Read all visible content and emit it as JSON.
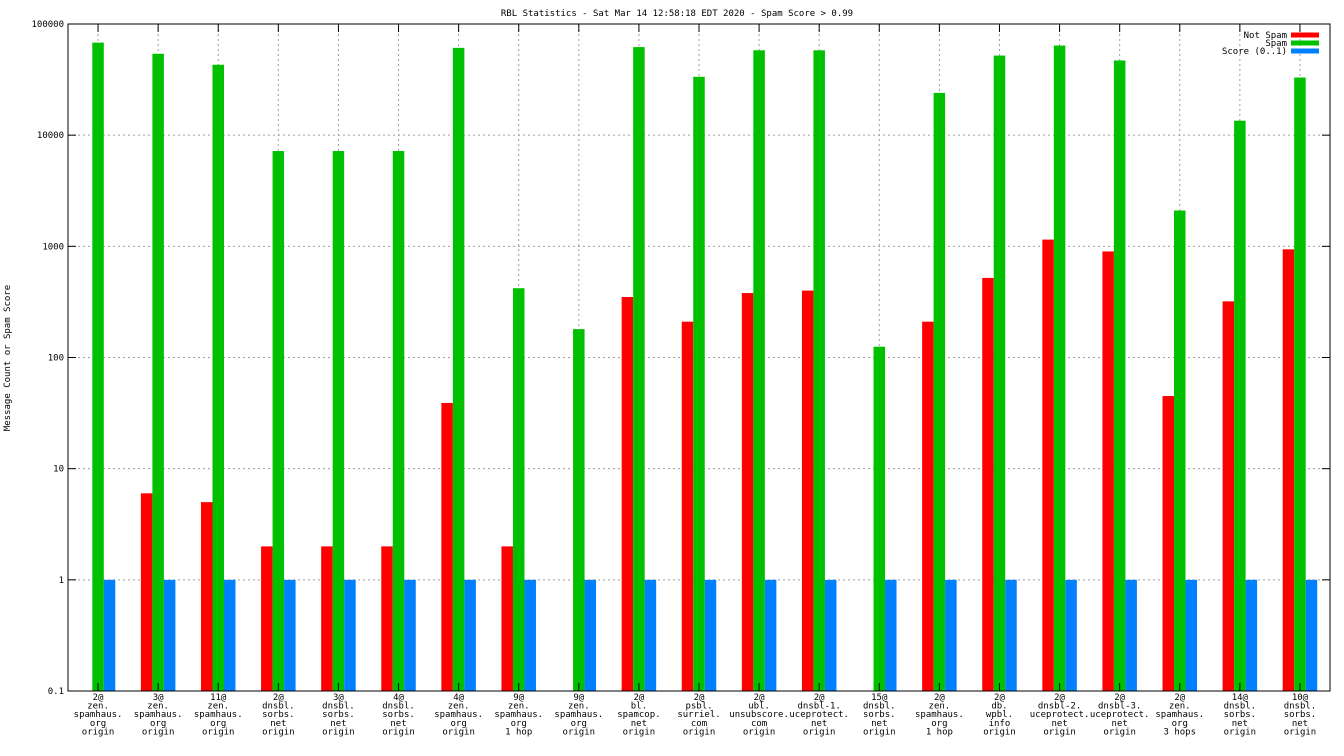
{
  "chart_data": {
    "type": "bar",
    "title": "RBL Statistics - Sat Mar 14 12:58:18 EDT 2020 - Spam Score > 0.99",
    "ylabel": "Message Count or Spam Score",
    "xlabel": "",
    "yscale": "log",
    "ylim": [
      0.1,
      100000
    ],
    "yticks": [
      "0.1",
      "1",
      "10",
      "100",
      "1000",
      "10000",
      "100000"
    ],
    "grid": true,
    "legend_position": "top-right",
    "categories": [
      [
        "2@",
        "zen.",
        "spamhaus.",
        "org",
        "origin"
      ],
      [
        "3@",
        "zen.",
        "spamhaus.",
        "org",
        "origin"
      ],
      [
        "11@",
        "zen.",
        "spamhaus.",
        "org",
        "origin"
      ],
      [
        "2@",
        "dnsbl.",
        "sorbs.",
        "net",
        "origin"
      ],
      [
        "3@",
        "dnsbl.",
        "sorbs.",
        "net",
        "origin"
      ],
      [
        "4@",
        "dnsbl.",
        "sorbs.",
        "net",
        "origin"
      ],
      [
        "4@",
        "zen.",
        "spamhaus.",
        "org",
        "origin"
      ],
      [
        "9@",
        "zen.",
        "spamhaus.",
        "org",
        "1 hop"
      ],
      [
        "9@",
        "zen.",
        "spamhaus.",
        "org",
        "origin"
      ],
      [
        "2@",
        "bl.",
        "spamcop.",
        "net",
        "origin"
      ],
      [
        "2@",
        "psbl.",
        "surriel.",
        "com",
        "origin"
      ],
      [
        "2@",
        "ubl.",
        "unsubscore.",
        "com",
        "origin"
      ],
      [
        "2@",
        "dnsbl-1.",
        "uceprotect.",
        "net",
        "origin"
      ],
      [
        "15@",
        "dnsbl.",
        "sorbs.",
        "net",
        "origin"
      ],
      [
        "2@",
        "zen.",
        "spamhaus.",
        "org",
        "1 hop"
      ],
      [
        "2@",
        "db.",
        "wpbl.",
        "info",
        "origin"
      ],
      [
        "2@",
        "dnsbl-2.",
        "uceprotect.",
        "net",
        "origin"
      ],
      [
        "2@",
        "dnsbl-3.",
        "uceprotect.",
        "net",
        "origin"
      ],
      [
        "2@",
        "zen.",
        "spamhaus.",
        "org",
        "3 hops"
      ],
      [
        "14@",
        "dnsbl.",
        "sorbs.",
        "net",
        "origin"
      ],
      [
        "10@",
        "dnsbl.",
        "sorbs.",
        "net",
        "origin"
      ]
    ],
    "series": [
      {
        "name": "Not Spam",
        "color": "#ff0000",
        "values": [
          null,
          6,
          5,
          2,
          2,
          2,
          39,
          2,
          null,
          350,
          210,
          380,
          400,
          null,
          210,
          520,
          1150,
          900,
          45,
          320,
          940
        ]
      },
      {
        "name": "Spam",
        "color": "#00c000",
        "values": [
          68000,
          54000,
          43000,
          7200,
          7200,
          7200,
          61000,
          420,
          180,
          62000,
          33500,
          58000,
          58000,
          125,
          24000,
          52000,
          64000,
          47000,
          2100,
          13500,
          33000
        ]
      },
      {
        "name": "Score (0..1)",
        "color": "#0080ff",
        "values": [
          1,
          1,
          1,
          1,
          1,
          1,
          1,
          1,
          1,
          1,
          1,
          1,
          1,
          1,
          1,
          1,
          1,
          1,
          1,
          1,
          1
        ]
      }
    ]
  }
}
